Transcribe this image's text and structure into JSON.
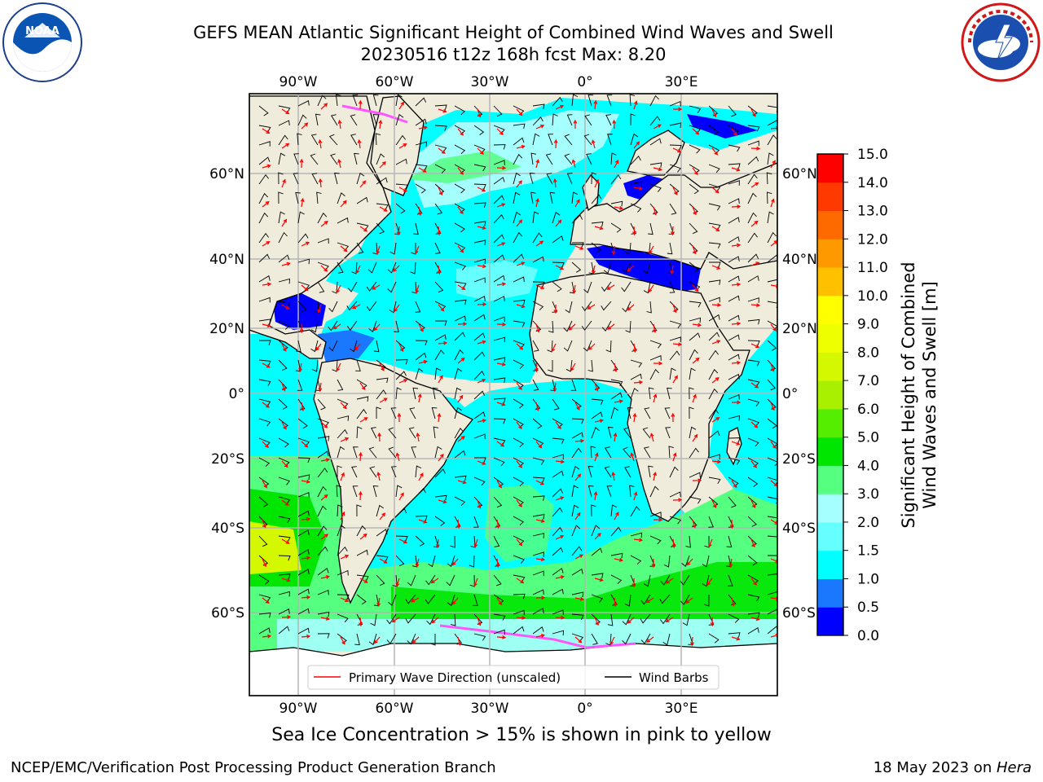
{
  "header": {
    "title_line1": "GEFS MEAN Atlantic Significant Height of Combined Wind Waves and Swell",
    "title_line2": "20230516 t12z 168h fcst   Max: 8.20"
  },
  "logos": {
    "left": "NOAA",
    "left_ring": "NATIONAL OCEANIC AND ATMOSPHERIC ADMINISTRATION · U.S. DEPARTMENT OF COMMERCE",
    "right_ring": "NATIONAL WEATHER SERVICE"
  },
  "map": {
    "lon_labels": [
      "90°W",
      "60°W",
      "30°W",
      "0°",
      "30°E"
    ],
    "lat_labels": [
      "60°N",
      "40°N",
      "20°N",
      "0°",
      "20°S",
      "40°S",
      "60°S"
    ],
    "legend": {
      "wave_direction": "Primary Wave Direction (unscaled)",
      "wind_barbs": "Wind Barbs"
    },
    "colors": {
      "land": "#efecdc",
      "grid": "#b5b5b5",
      "wave_arrow": "#ff0000",
      "barb": "#000000"
    }
  },
  "colorbar": {
    "label_line1": "Significant Height of Combined",
    "label_line2": "Wind Waves and Swell [m]",
    "ticks": [
      "0.0",
      "0.5",
      "1.0",
      "1.5",
      "2.0",
      "3.0",
      "4.0",
      "5.0",
      "6.0",
      "7.0",
      "8.0",
      "9.0",
      "10.0",
      "11.0",
      "12.0",
      "13.0",
      "14.0",
      "15.0"
    ],
    "colors": [
      "#0000ff",
      "#1a78ff",
      "#00ffff",
      "#66ffff",
      "#a6ffff",
      "#55ff80",
      "#00e600",
      "#55ee00",
      "#a8f000",
      "#d4f800",
      "#eeff00",
      "#ffff00",
      "#ffc000",
      "#ff9900",
      "#ff6a00",
      "#ff3a00",
      "#ff0000"
    ]
  },
  "notes": {
    "sea_ice": "Sea Ice Concentration > 15% is shown in pink to yellow"
  },
  "footer": {
    "left": "NCEP/EMC/Verification Post Processing Product Generation Branch",
    "date": "18 May 2023 on ",
    "host": "Hera"
  }
}
